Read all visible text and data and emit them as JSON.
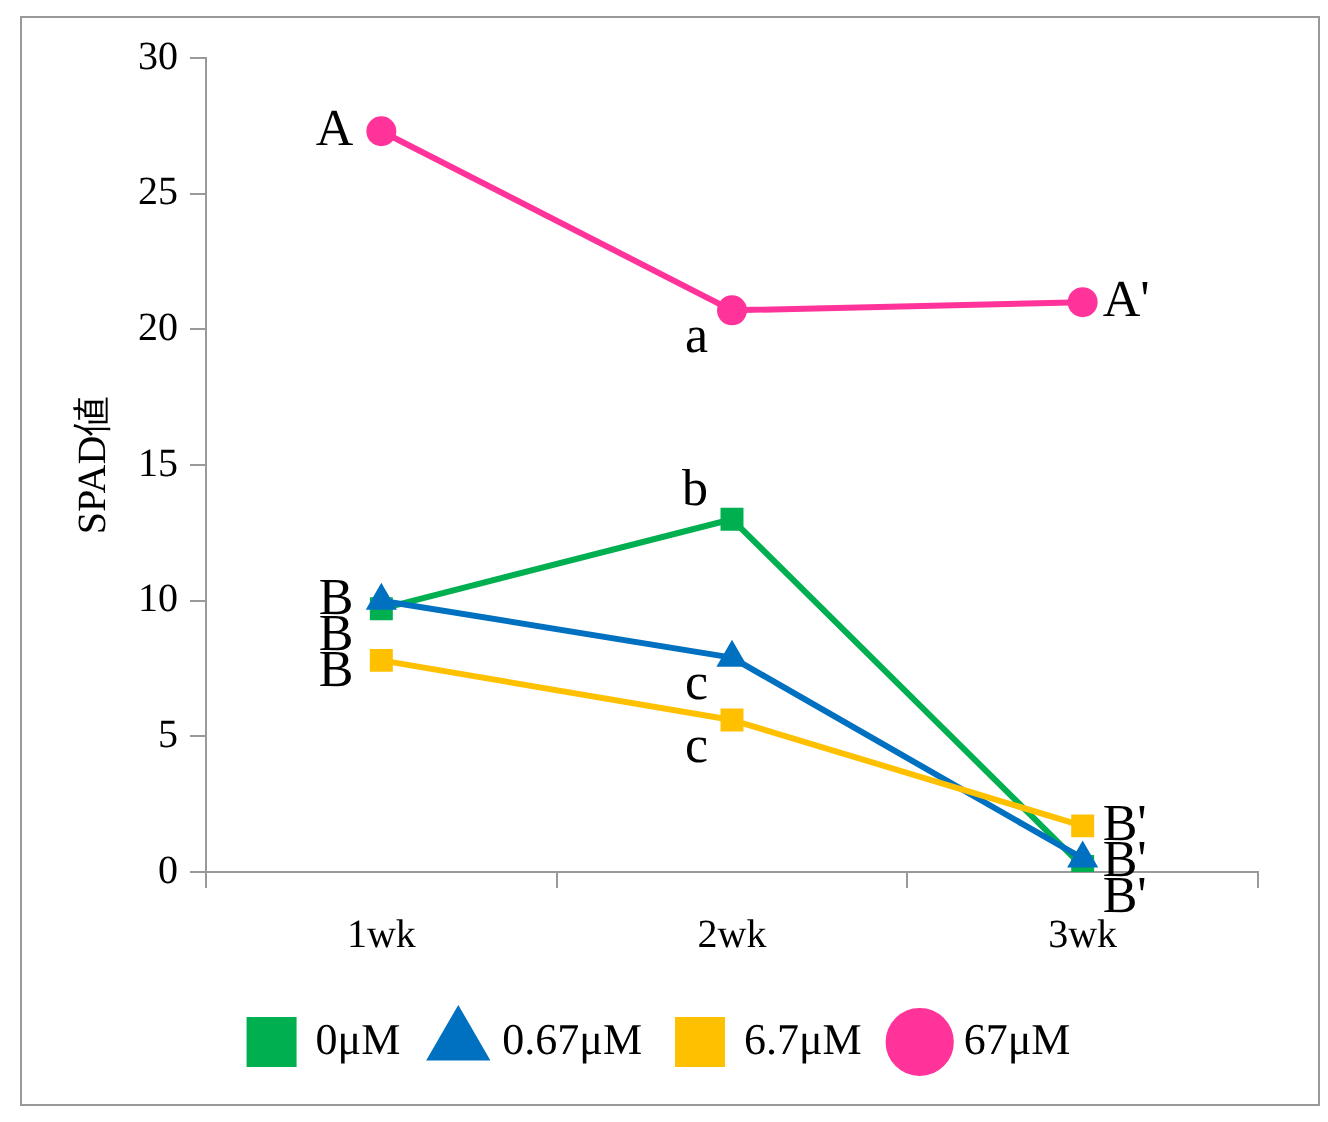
{
  "chart_data": {
    "type": "line",
    "ylabel": "SPAD値",
    "categories": [
      "1wk",
      "2wk",
      "3wk"
    ],
    "series": [
      {
        "name": "0μM",
        "color": "#00b050",
        "marker": "square",
        "values": [
          9.7,
          13.0,
          0.2
        ]
      },
      {
        "name": "0.67μM",
        "color": "#0070c0",
        "marker": "triangle",
        "values": [
          10.0,
          7.9,
          0.5
        ]
      },
      {
        "name": "6.7μM",
        "color": "#ffc000",
        "marker": "square",
        "values": [
          7.8,
          5.6,
          1.7
        ]
      },
      {
        "name": "67μM",
        "color": "#ff3399",
        "marker": "circle",
        "values": [
          27.3,
          20.7,
          21.0
        ]
      }
    ],
    "ylim": [
      0,
      30
    ],
    "yticks": [
      0,
      5,
      10,
      15,
      20,
      25,
      30
    ],
    "grid": false,
    "legend": "bottom",
    "annotations": [
      {
        "text": "B",
        "x": "1wk",
        "y": 10.0
      },
      {
        "text": "B",
        "x": "1wk",
        "y": 9.7
      },
      {
        "text": "B",
        "x": "1wk",
        "y": 7.8
      },
      {
        "text": "A",
        "x": "1wk",
        "y": 27.3
      },
      {
        "text": "b",
        "x": "2wk",
        "y": 13.0
      },
      {
        "text": "c",
        "x": "2wk",
        "y": 7.9
      },
      {
        "text": "c",
        "x": "2wk",
        "y": 5.6
      },
      {
        "text": "a",
        "x": "2wk",
        "y": 20.7
      },
      {
        "text": "B'",
        "x": "3wk",
        "y": 1.7
      },
      {
        "text": "B'",
        "x": "3wk",
        "y": 0.5
      },
      {
        "text": "B'",
        "x": "3wk",
        "y": 0.2
      },
      {
        "text": "A'",
        "x": "3wk",
        "y": 21.0
      }
    ]
  }
}
